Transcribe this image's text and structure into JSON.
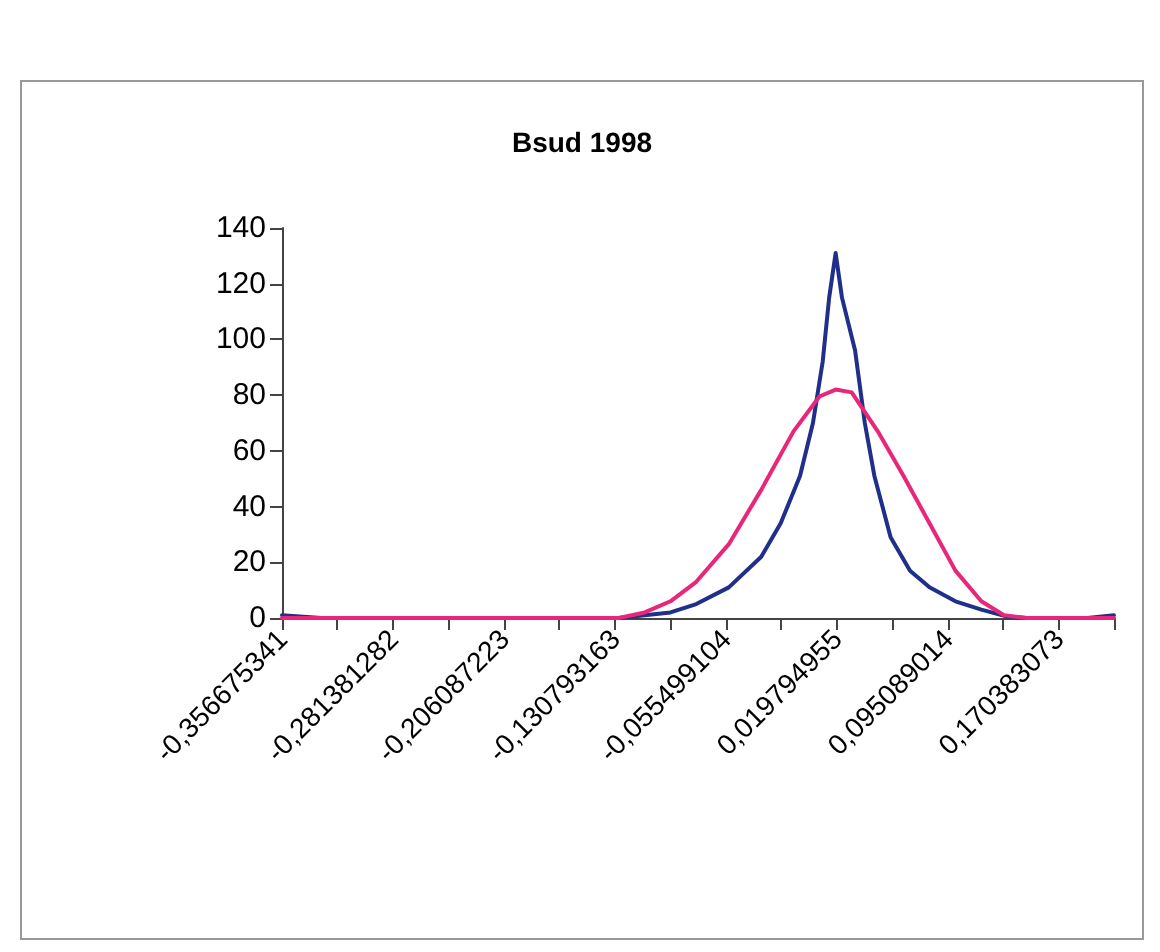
{
  "chart_data": {
    "type": "line",
    "title": "Bsud 1998",
    "xlim": [
      -0.356675341,
      0.2080301025
    ],
    "xticks": [
      {
        "value": -0.356675341,
        "label": "-0,356675341"
      },
      {
        "value": -0.3190283115,
        "label": null
      },
      {
        "value": -0.281381282,
        "label": "-0,281381282"
      },
      {
        "value": -0.2437342525,
        "label": null
      },
      {
        "value": -0.206087223,
        "label": "-0,206087223"
      },
      {
        "value": -0.1684401935,
        "label": null
      },
      {
        "value": -0.130793163,
        "label": "-0,130793163"
      },
      {
        "value": -0.0931461335,
        "label": null
      },
      {
        "value": -0.055499104,
        "label": "-0,055499104"
      },
      {
        "value": -0.0178520745,
        "label": null
      },
      {
        "value": 0.019794955,
        "label": "0,019794955"
      },
      {
        "value": 0.0574419845,
        "label": null
      },
      {
        "value": 0.095089014,
        "label": "0,095089014"
      },
      {
        "value": 0.1327360435,
        "label": null
      },
      {
        "value": 0.170383073,
        "label": "0,170383073"
      },
      {
        "value": 0.2080301025,
        "label": null
      }
    ],
    "ylim": [
      0,
      140
    ],
    "yticks": [
      0,
      20,
      40,
      60,
      80,
      100,
      120,
      140
    ],
    "grid": false,
    "marker": "none",
    "line_style": "solid",
    "series": [
      {
        "color": "#1f2f8a",
        "x": [
          -0.35667,
          -0.33,
          -0.128,
          -0.093,
          -0.0755,
          -0.0534,
          -0.0314,
          -0.0182,
          -0.0051,
          0.0037,
          0.0103,
          0.0147,
          0.0191,
          0.0234,
          0.0323,
          0.0389,
          0.0454,
          0.0564,
          0.0696,
          0.0828,
          0.1004,
          0.118,
          0.1355,
          0.1487,
          0.19,
          0.208
        ],
        "values": [
          1,
          0,
          0,
          2,
          5,
          11,
          22,
          34,
          51,
          70,
          92,
          115,
          131,
          115,
          96,
          70,
          51,
          29,
          17,
          11,
          6,
          3,
          0.5,
          0,
          0,
          1
        ]
      },
      {
        "color": "#e8267a",
        "x": [
          -0.35667,
          -0.128,
          -0.1105,
          -0.093,
          -0.0755,
          -0.0534,
          -0.0314,
          -0.0095,
          0.0081,
          0.0191,
          0.03,
          0.0477,
          0.0652,
          0.0828,
          0.1004,
          0.118,
          0.1334,
          0.1487,
          0.208
        ],
        "values": [
          0,
          0,
          2,
          6,
          13,
          26.5,
          46,
          67,
          79.5,
          82,
          81,
          67,
          51,
          34,
          17,
          6,
          1,
          0,
          0
        ]
      }
    ]
  }
}
